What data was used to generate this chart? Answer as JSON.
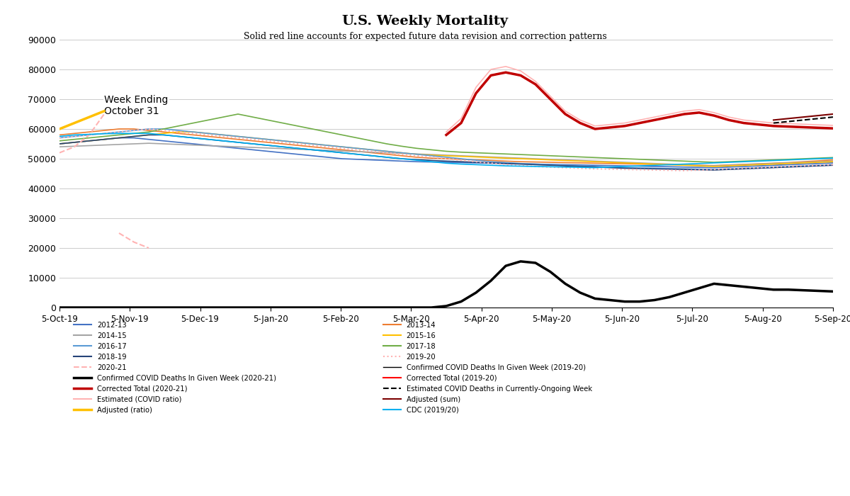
{
  "title": "U.S. Weekly Mortality",
  "subtitle": "Solid red line accounts for expected future data revision and correction patterns",
  "annotation": "Week Ending\nOctober 31",
  "ylim": [
    0,
    90000
  ],
  "yticks": [
    0,
    10000,
    20000,
    30000,
    40000,
    50000,
    60000,
    70000,
    80000,
    90000
  ],
  "xtick_labels": [
    "5-Oct-19",
    "5-Nov-19",
    "5-Dec-19",
    "5-Jan-20",
    "5-Feb-20",
    "5-Mar-20",
    "5-Apr-20",
    "5-May-20",
    "5-Jun-20",
    "5-Jul-20",
    "5-Aug-20",
    "5-Sep-20"
  ],
  "weeks": 53,
  "series_2012_13": [
    55000,
    55500,
    56000,
    56500,
    57000,
    57000,
    56500,
    56000,
    55500,
    55000,
    54500,
    54000,
    53500,
    53000,
    52500,
    52000,
    51500,
    51000,
    50500,
    50000,
    49800,
    49600,
    49400,
    49200,
    49000,
    48900,
    48800,
    48700,
    48600,
    48500,
    48400,
    48300,
    48200,
    48100,
    48000,
    47900,
    47800,
    47700,
    47600,
    47500,
    47400,
    47300,
    47200,
    47100,
    47000,
    47200,
    47400,
    47600,
    47800,
    48000,
    48200,
    48400,
    48600
  ],
  "series_2013_14": [
    58000,
    58500,
    59000,
    59500,
    60000,
    60000,
    59500,
    59000,
    58500,
    58000,
    57500,
    57000,
    56500,
    56000,
    55500,
    55000,
    54500,
    54000,
    53500,
    53000,
    52500,
    52000,
    51500,
    51000,
    50500,
    50200,
    50000,
    49800,
    49600,
    49400,
    49200,
    49000,
    48900,
    48800,
    48700,
    48600,
    48500,
    48400,
    48300,
    48200,
    48100,
    48000,
    47900,
    47800,
    47700,
    47900,
    48100,
    48300,
    48500,
    48700,
    49000,
    49300,
    49600
  ],
  "series_2014_15": [
    54000,
    54200,
    54400,
    54600,
    54800,
    55000,
    55200,
    55000,
    54800,
    54600,
    54400,
    54200,
    54000,
    53800,
    53600,
    53400,
    53200,
    53000,
    52800,
    52600,
    52400,
    52200,
    52000,
    51800,
    51600,
    51400,
    51200,
    51000,
    50800,
    50600,
    50400,
    50200,
    50000,
    49800,
    49600,
    49400,
    49200,
    49000,
    48800,
    48600,
    48400,
    48200,
    48000,
    47800,
    47600,
    47800,
    48000,
    48200,
    48400,
    48600,
    48800,
    49000,
    49200
  ],
  "series_2015_16": [
    55000,
    55500,
    56000,
    56500,
    57000,
    57500,
    58000,
    58500,
    59000,
    59000,
    58500,
    58000,
    57500,
    57000,
    56500,
    56000,
    55500,
    55000,
    54500,
    54000,
    53500,
    53000,
    52500,
    52000,
    51500,
    51200,
    51000,
    50800,
    50600,
    50400,
    50200,
    50000,
    49800,
    49600,
    49400,
    49200,
    49000,
    48800,
    48600,
    48400,
    48200,
    48000,
    47800,
    47600,
    47400,
    47600,
    47800,
    48000,
    48200,
    48400,
    48600,
    48800,
    49000
  ],
  "series_2016_17": [
    57000,
    57500,
    58000,
    58500,
    59000,
    59500,
    60000,
    60000,
    59500,
    59000,
    58500,
    58000,
    57500,
    57000,
    56500,
    56000,
    55500,
    55000,
    54500,
    54000,
    53500,
    53000,
    52500,
    52000,
    51500,
    51000,
    50500,
    50000,
    49500,
    49000,
    48700,
    48400,
    48200,
    48000,
    47800,
    47600,
    47400,
    47200,
    47000,
    46900,
    46800,
    46700,
    46600,
    46500,
    46400,
    46600,
    46800,
    47000,
    47200,
    47400,
    47600,
    47800,
    48000
  ],
  "series_2017_18": [
    56000,
    56500,
    57000,
    57500,
    58000,
    58500,
    59000,
    60000,
    61000,
    62000,
    63000,
    64000,
    65000,
    64000,
    63000,
    62000,
    61000,
    60000,
    59000,
    58000,
    57000,
    56000,
    55000,
    54200,
    53500,
    53000,
    52500,
    52200,
    52000,
    51800,
    51600,
    51400,
    51200,
    51000,
    50800,
    50600,
    50400,
    50200,
    50000,
    49800,
    49600,
    49400,
    49200,
    49000,
    48800,
    49000,
    49200,
    49400,
    49600,
    49800,
    50000,
    50200,
    50400
  ],
  "series_2018_19": [
    55000,
    55500,
    56000,
    56500,
    57000,
    57500,
    58000,
    58000,
    57500,
    57000,
    56500,
    56000,
    55500,
    55000,
    54500,
    54000,
    53500,
    53000,
    52500,
    52000,
    51500,
    51000,
    50500,
    50000,
    49700,
    49400,
    49200,
    49000,
    48800,
    48600,
    48400,
    48200,
    48000,
    47800,
    47600,
    47400,
    47200,
    47000,
    46800,
    46700,
    46600,
    46500,
    46400,
    46300,
    46200,
    46400,
    46600,
    46800,
    47000,
    47200,
    47400,
    47600,
    47800
  ],
  "series_2019_20_dotted": [
    57000,
    57500,
    58000,
    58500,
    59000,
    59500,
    60000,
    59500,
    59000,
    58500,
    58000,
    57500,
    57000,
    56500,
    56000,
    55500,
    55000,
    54500,
    54000,
    53500,
    53000,
    52500,
    52000,
    51500,
    51000,
    50500,
    50000,
    49500,
    49000,
    48500,
    48000,
    47700,
    47400,
    47200,
    47000,
    46800,
    46600,
    46500,
    46400,
    46300,
    46200,
    46100,
    46000,
    46200,
    46400,
    46600,
    46800,
    47000,
    47200,
    47400,
    47600,
    47800,
    48000
  ],
  "series_2020_21_dotted": [
    52000,
    54000,
    58000,
    65000,
    null,
    null,
    null,
    null,
    null,
    null,
    null,
    null,
    null,
    null,
    null,
    null,
    null,
    null,
    null,
    null,
    null,
    null,
    null,
    null,
    null,
    null,
    null,
    null,
    null,
    null,
    null,
    null,
    null,
    null,
    null,
    null,
    null,
    null,
    null,
    null,
    null,
    null,
    null,
    null,
    null,
    null,
    null,
    null,
    null,
    null,
    null,
    null,
    null
  ],
  "series_2020_21_dashed_continuation": [
    null,
    null,
    null,
    null,
    25000,
    22000,
    20000,
    null,
    null,
    null,
    null,
    null,
    null,
    null,
    null,
    null,
    null,
    null,
    null,
    null,
    null,
    null,
    null,
    null,
    null,
    null,
    null,
    null,
    null,
    null,
    null,
    null,
    null,
    null,
    null,
    null,
    null,
    null,
    null,
    null,
    null,
    null,
    null,
    null,
    null,
    null,
    null,
    null,
    null,
    null,
    null,
    null,
    null
  ],
  "covid_deaths_2020_21": [
    0,
    0,
    0,
    0,
    0,
    0,
    0,
    0,
    0,
    0,
    0,
    0,
    0,
    0,
    0,
    0,
    0,
    0,
    0,
    0,
    0,
    0,
    0,
    0,
    0,
    0,
    500,
    2000,
    5000,
    9000,
    14000,
    15500,
    15000,
    12000,
    8000,
    5000,
    3000,
    2500,
    2000,
    2000,
    2500,
    3500,
    5000,
    6500,
    8000,
    7500,
    7000,
    6500,
    6000,
    6000,
    5800,
    5600,
    5400
  ],
  "corrected_total_2020_21": [
    null,
    null,
    null,
    null,
    null,
    null,
    null,
    null,
    null,
    null,
    null,
    null,
    null,
    null,
    null,
    null,
    null,
    null,
    null,
    null,
    null,
    null,
    null,
    null,
    null,
    null,
    58000,
    62000,
    72000,
    78000,
    79000,
    78000,
    75000,
    70000,
    65000,
    62000,
    60000,
    60500,
    61000,
    62000,
    63000,
    64000,
    65000,
    65500,
    64500,
    63000,
    62000,
    61500,
    61000,
    60800,
    60600,
    60400,
    60200
  ],
  "corrected_total_2019_20": [
    null,
    null,
    null,
    null,
    null,
    null,
    null,
    null,
    null,
    null,
    null,
    null,
    null,
    null,
    null,
    null,
    null,
    null,
    null,
    null,
    null,
    null,
    null,
    null,
    null,
    null,
    58000,
    62000,
    72000,
    78000,
    79000,
    78000,
    75000,
    70000,
    65000,
    62000,
    60000,
    60500,
    61000,
    62000,
    63000,
    64000,
    65000,
    65500,
    64500,
    63000,
    62000,
    61500,
    61000,
    60800,
    60600,
    60400,
    60200
  ],
  "covid_deaths_2019_20": [
    0,
    0,
    0,
    0,
    0,
    0,
    0,
    0,
    0,
    0,
    0,
    0,
    0,
    0,
    0,
    0,
    0,
    0,
    0,
    0,
    0,
    0,
    0,
    0,
    0,
    0,
    500,
    2000,
    5000,
    9000,
    14000,
    15500,
    15000,
    12000,
    8000,
    5000,
    3000,
    2500,
    2000,
    2000,
    2500,
    3500,
    5000,
    6500,
    8000,
    7500,
    7000,
    6500,
    6000,
    6000,
    5800,
    5600,
    5400
  ],
  "estimated_covid_ratio": [
    null,
    null,
    null,
    null,
    null,
    null,
    null,
    null,
    null,
    null,
    null,
    null,
    null,
    null,
    null,
    null,
    null,
    null,
    null,
    null,
    null,
    null,
    null,
    null,
    null,
    null,
    59000,
    63500,
    74000,
    80000,
    81000,
    79500,
    76000,
    71000,
    66000,
    63000,
    61000,
    61500,
    62000,
    63000,
    64000,
    65000,
    66000,
    66500,
    65500,
    64000,
    63000,
    62500,
    62000,
    61800,
    61600,
    61400,
    61200
  ],
  "estimated_ongoing": [
    null,
    null,
    null,
    null,
    null,
    null,
    null,
    null,
    null,
    null,
    null,
    null,
    null,
    null,
    null,
    null,
    null,
    null,
    null,
    null,
    null,
    null,
    null,
    null,
    null,
    null,
    null,
    null,
    null,
    null,
    null,
    null,
    null,
    null,
    null,
    null,
    null,
    null,
    null,
    null,
    null,
    null,
    null,
    null,
    null,
    null,
    null,
    null,
    62000,
    62500,
    63000,
    63500,
    64000
  ],
  "adjusted_ratio": [
    60000,
    62000,
    64000,
    66000,
    null,
    null,
    null,
    null,
    null,
    null,
    null,
    null,
    null,
    null,
    null,
    null,
    null,
    null,
    null,
    null,
    null,
    null,
    null,
    null,
    null,
    null,
    null,
    null,
    null,
    null,
    null,
    null,
    null,
    null,
    null,
    null,
    null,
    null,
    null,
    null,
    null,
    null,
    null,
    null,
    null,
    null,
    null,
    null,
    null,
    null,
    null,
    null,
    null
  ],
  "adjusted_sum": [
    null,
    null,
    null,
    null,
    null,
    null,
    null,
    null,
    null,
    null,
    null,
    null,
    null,
    null,
    null,
    null,
    null,
    null,
    null,
    null,
    null,
    null,
    null,
    null,
    null,
    null,
    null,
    null,
    null,
    null,
    null,
    null,
    null,
    null,
    null,
    null,
    null,
    null,
    null,
    null,
    null,
    null,
    null,
    null,
    null,
    null,
    null,
    null,
    63000,
    63500,
    64000,
    64500,
    65000
  ],
  "cdc_2019_20": [
    57500,
    58000,
    58200,
    58400,
    58500,
    58500,
    58500,
    58000,
    57500,
    57000,
    56500,
    56000,
    55500,
    55000,
    54500,
    54000,
    53500,
    53000,
    52500,
    52000,
    51500,
    51000,
    50500,
    50000,
    49500,
    49000,
    48500,
    48200,
    48000,
    47800,
    47600,
    47500,
    47400,
    47300,
    47200,
    47100,
    47000,
    47200,
    47400,
    47600,
    47800,
    48000,
    48200,
    48400,
    48600,
    48800,
    49000,
    49200,
    49400,
    49600,
    49800,
    50000,
    50200
  ]
}
